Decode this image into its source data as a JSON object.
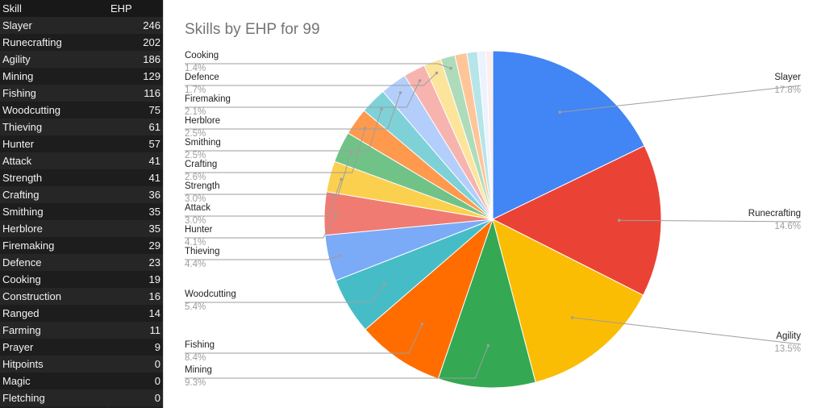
{
  "sheet": {
    "header": {
      "skill": "Skill",
      "ehp": "EHP"
    },
    "rows": [
      {
        "skill": "Slayer",
        "ehp": "246"
      },
      {
        "skill": "Runecrafting",
        "ehp": "202"
      },
      {
        "skill": "Agility",
        "ehp": "186"
      },
      {
        "skill": "Mining",
        "ehp": "129"
      },
      {
        "skill": "Fishing",
        "ehp": "116"
      },
      {
        "skill": "Woodcutting",
        "ehp": "75"
      },
      {
        "skill": "Thieving",
        "ehp": "61"
      },
      {
        "skill": "Hunter",
        "ehp": "57"
      },
      {
        "skill": "Attack",
        "ehp": "41"
      },
      {
        "skill": "Strength",
        "ehp": "41"
      },
      {
        "skill": "Crafting",
        "ehp": "36"
      },
      {
        "skill": "Smithing",
        "ehp": "35"
      },
      {
        "skill": "Herblore",
        "ehp": "35"
      },
      {
        "skill": "Firemaking",
        "ehp": "29"
      },
      {
        "skill": "Defence",
        "ehp": "23"
      },
      {
        "skill": "Cooking",
        "ehp": "19"
      },
      {
        "skill": "Construction",
        "ehp": "16"
      },
      {
        "skill": "Ranged",
        "ehp": "14"
      },
      {
        "skill": "Farming",
        "ehp": "11"
      },
      {
        "skill": "Prayer",
        "ehp": "9"
      },
      {
        "skill": "Hitpoints",
        "ehp": "0"
      },
      {
        "skill": "Magic",
        "ehp": "0"
      },
      {
        "skill": "Fletching",
        "ehp": "0"
      }
    ]
  },
  "chart_data": {
    "type": "pie",
    "title": "Skills by EHP for 99",
    "categories": [
      "Slayer",
      "Runecrafting",
      "Agility",
      "Mining",
      "Fishing",
      "Woodcutting",
      "Thieving",
      "Hunter",
      "Attack",
      "Strength",
      "Crafting",
      "Smithing",
      "Herblore",
      "Firemaking",
      "Defence",
      "Cooking",
      "Construction",
      "Ranged",
      "Farming",
      "Prayer",
      "Hitpoints",
      "Magic",
      "Fletching"
    ],
    "values": [
      246,
      202,
      186,
      129,
      116,
      75,
      61,
      57,
      41,
      41,
      36,
      35,
      35,
      29,
      23,
      19,
      16,
      14,
      11,
      9,
      0,
      0,
      0
    ],
    "colors": [
      "#4285f4",
      "#ea4335",
      "#fbbc04",
      "#34a853",
      "#ff6d01",
      "#46bdc6",
      "#7baaf7",
      "#f07b72",
      "#fcd04f",
      "#71c287",
      "#ff994d",
      "#7ed1d7",
      "#b3cefb",
      "#f7b4ae",
      "#fde49b",
      "#aedcba",
      "#ffc599",
      "#b5e5e8",
      "#ecf3fe",
      "#fdeeed"
    ],
    "labels": [
      {
        "skill": "Slayer",
        "pct": "17.8%"
      },
      {
        "skill": "Runecrafting",
        "pct": "14.6%"
      },
      {
        "skill": "Agility",
        "pct": "13.5%"
      },
      {
        "skill": "Mining",
        "pct": "9.3%"
      },
      {
        "skill": "Fishing",
        "pct": "8.4%"
      },
      {
        "skill": "Woodcutting",
        "pct": "5.4%"
      },
      {
        "skill": "Thieving",
        "pct": "4.4%"
      },
      {
        "skill": "Hunter",
        "pct": "4.1%"
      },
      {
        "skill": "Attack",
        "pct": "3.0%"
      },
      {
        "skill": "Strength",
        "pct": "3.0%"
      },
      {
        "skill": "Crafting",
        "pct": "2.6%"
      },
      {
        "skill": "Smithing",
        "pct": "2.5%"
      },
      {
        "skill": "Herblore",
        "pct": "2.5%"
      },
      {
        "skill": "Firemaking",
        "pct": "2.1%"
      },
      {
        "skill": "Defence",
        "pct": "1.7%"
      },
      {
        "skill": "Cooking",
        "pct": "1.4%"
      }
    ],
    "start_angle": "12 o'clock",
    "direction": "clockwise",
    "legend": "none"
  }
}
